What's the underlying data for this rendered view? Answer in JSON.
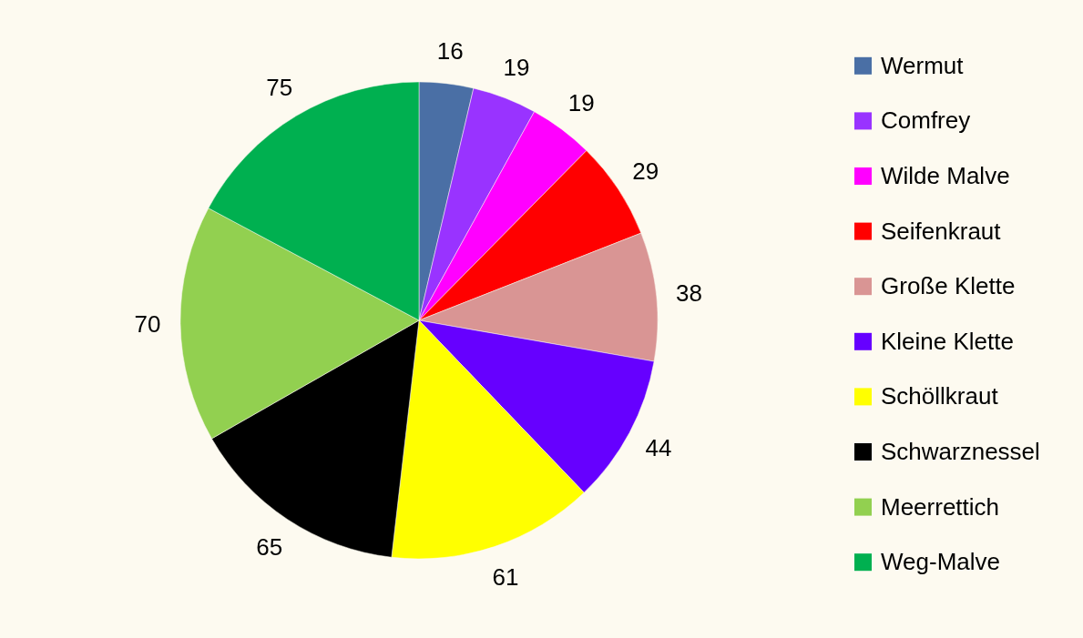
{
  "chart_data": {
    "type": "pie",
    "categories": [
      "Wermut",
      "Comfrey",
      "Wilde Malve",
      "Seifenkraut",
      "Große Klette",
      "Kleine Klette",
      "Schöllkraut",
      "Schwarznessel",
      "Meerrettich",
      "Weg-Malve"
    ],
    "values": [
      16,
      19,
      19,
      29,
      38,
      44,
      61,
      65,
      70,
      75
    ],
    "colors": [
      "#4a6fa5",
      "#9933ff",
      "#ff00ff",
      "#ff0000",
      "#d99594",
      "#6600ff",
      "#ffff00",
      "#000000",
      "#92d050",
      "#00b050"
    ],
    "data_labels": true,
    "legend": "right"
  }
}
